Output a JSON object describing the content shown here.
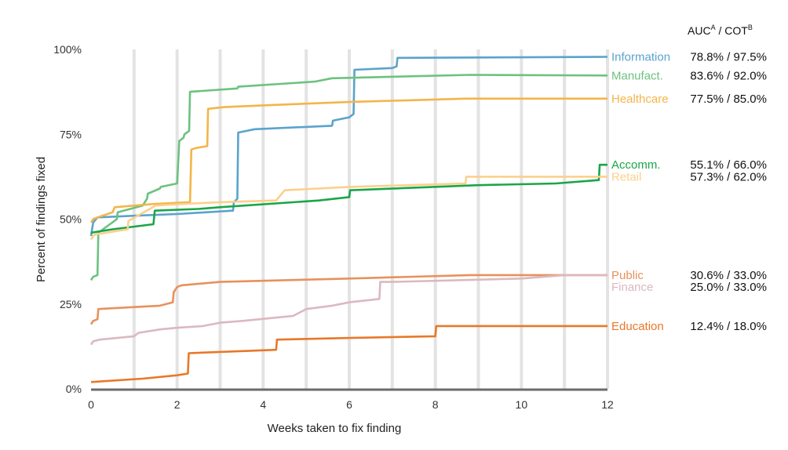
{
  "chart_data": {
    "type": "line",
    "title": "",
    "xlabel": "Weeks taken to fix finding",
    "ylabel": "Percent of findings fixed",
    "xlim": [
      0,
      12
    ],
    "ylim": [
      0,
      100
    ],
    "x_ticks": [
      0,
      2,
      4,
      6,
      8,
      10,
      12
    ],
    "y_ticks": [
      0,
      25,
      50,
      75,
      100
    ],
    "y_tick_labels": [
      "0%",
      "25%",
      "50%",
      "75%",
      "100%"
    ],
    "metrics_header": {
      "auc": "AUC",
      "auc_sup": "A",
      "sep": " / ",
      "cot": "COT",
      "cot_sup": "B"
    },
    "grid": {
      "vertical_every_weeks": 1,
      "horizontal": false
    },
    "legend": "right-of-plot",
    "series": [
      {
        "name": "Information",
        "color": "#5aa3cc",
        "metrics": "78.8% / 97.5%",
        "points": [
          [
            0,
            45
          ],
          [
            0.05,
            49
          ],
          [
            0.15,
            50.5
          ],
          [
            1,
            51
          ],
          [
            2,
            51.5
          ],
          [
            3.3,
            52.5
          ],
          [
            3.32,
            55
          ],
          [
            3.4,
            56
          ],
          [
            3.42,
            75.5
          ],
          [
            3.8,
            76.5
          ],
          [
            5.6,
            77.5
          ],
          [
            5.62,
            79
          ],
          [
            6,
            80
          ],
          [
            6.1,
            81
          ],
          [
            6.12,
            94
          ],
          [
            7,
            94.5
          ],
          [
            7.1,
            95
          ],
          [
            7.12,
            97.5
          ],
          [
            12,
            97.8
          ]
        ]
      },
      {
        "name": "Manufact.",
        "color": "#6cc27f",
        "metrics": "83.6% / 92.0%",
        "points": [
          [
            0,
            32
          ],
          [
            0.05,
            33
          ],
          [
            0.15,
            33.5
          ],
          [
            0.17,
            46
          ],
          [
            0.6,
            50
          ],
          [
            0.62,
            52
          ],
          [
            1.2,
            54
          ],
          [
            1.3,
            56
          ],
          [
            1.32,
            57.5
          ],
          [
            1.6,
            59
          ],
          [
            1.62,
            59.5
          ],
          [
            2,
            60.5
          ],
          [
            2.05,
            73
          ],
          [
            2.15,
            74
          ],
          [
            2.17,
            75
          ],
          [
            2.28,
            76
          ],
          [
            2.3,
            87.5
          ],
          [
            3.4,
            88.5
          ],
          [
            3.42,
            89
          ],
          [
            5.2,
            90.5
          ],
          [
            5.6,
            91.5
          ],
          [
            8.8,
            92.5
          ],
          [
            12,
            92.3
          ]
        ]
      },
      {
        "name": "Healthcare",
        "color": "#f3b549",
        "metrics": "77.5% / 85.0%",
        "points": [
          [
            0,
            49
          ],
          [
            0.05,
            50
          ],
          [
            0.15,
            50.5
          ],
          [
            0.5,
            52
          ],
          [
            0.55,
            53.5
          ],
          [
            1.5,
            54.5
          ],
          [
            2.3,
            55
          ],
          [
            2.33,
            70.5
          ],
          [
            2.45,
            71
          ],
          [
            2.7,
            71.5
          ],
          [
            2.72,
            82.5
          ],
          [
            3.1,
            83
          ],
          [
            4,
            83.5
          ],
          [
            6,
            84.5
          ],
          [
            8.7,
            85.5
          ],
          [
            12,
            85.5
          ]
        ]
      },
      {
        "name": "Accomm.",
        "color": "#1ba548",
        "metrics": "55.1% / 66.0%",
        "points": [
          [
            0,
            46
          ],
          [
            0.5,
            47
          ],
          [
            1.45,
            48.5
          ],
          [
            1.48,
            52.5
          ],
          [
            2.5,
            53
          ],
          [
            3,
            53.5
          ],
          [
            5.3,
            55.5
          ],
          [
            6,
            56.5
          ],
          [
            6.02,
            58.5
          ],
          [
            9,
            60
          ],
          [
            10.8,
            60.5
          ],
          [
            11.8,
            61.5
          ],
          [
            11.82,
            66
          ],
          [
            12,
            66
          ]
        ]
      },
      {
        "name": "Retail",
        "color": "#fbd08c",
        "metrics": "57.3% / 62.0%",
        "points": [
          [
            0,
            44
          ],
          [
            0.05,
            45
          ],
          [
            0.1,
            45.5
          ],
          [
            0.85,
            47
          ],
          [
            0.87,
            49.5
          ],
          [
            1.5,
            54
          ],
          [
            2.2,
            54.5
          ],
          [
            3,
            55
          ],
          [
            4.3,
            55.5
          ],
          [
            4.4,
            57
          ],
          [
            4.5,
            58.5
          ],
          [
            6,
            59.5
          ],
          [
            8.7,
            60.5
          ],
          [
            8.72,
            62.5
          ],
          [
            12,
            62.5
          ]
        ]
      },
      {
        "name": "Public",
        "color": "#e8915b",
        "metrics": "30.6% / 33.0%",
        "points": [
          [
            0,
            19
          ],
          [
            0.05,
            20
          ],
          [
            0.15,
            20.5
          ],
          [
            0.17,
            23.5
          ],
          [
            1.6,
            24.5
          ],
          [
            1.9,
            25.5
          ],
          [
            1.92,
            28.5
          ],
          [
            2,
            30
          ],
          [
            2.1,
            30.5
          ],
          [
            3,
            31.5
          ],
          [
            6,
            32.5
          ],
          [
            8.8,
            33.5
          ],
          [
            12,
            33.5
          ]
        ]
      },
      {
        "name": "Finance",
        "color": "#dcb8c0",
        "metrics": "25.0% / 33.0%",
        "points": [
          [
            0,
            13
          ],
          [
            0.05,
            14
          ],
          [
            0.2,
            14.5
          ],
          [
            1,
            15.5
          ],
          [
            1.1,
            16.5
          ],
          [
            1.6,
            17.5
          ],
          [
            2,
            18
          ],
          [
            2.6,
            18.5
          ],
          [
            3,
            19.5
          ],
          [
            3.5,
            20
          ],
          [
            4.7,
            21.5
          ],
          [
            5,
            23.5
          ],
          [
            5.6,
            24.5
          ],
          [
            5.8,
            25
          ],
          [
            6,
            25.5
          ],
          [
            6.7,
            26.5
          ],
          [
            6.72,
            31.5
          ],
          [
            7,
            31.5
          ],
          [
            10,
            32.5
          ],
          [
            11,
            33.5
          ],
          [
            12,
            33.5
          ]
        ]
      },
      {
        "name": "Education",
        "color": "#e8782a",
        "metrics": "12.4% / 18.0%",
        "points": [
          [
            0,
            2
          ],
          [
            1.2,
            3
          ],
          [
            2,
            4
          ],
          [
            2.25,
            4.5
          ],
          [
            2.27,
            10.5
          ],
          [
            4.3,
            11.5
          ],
          [
            4.32,
            14.5
          ],
          [
            6,
            15
          ],
          [
            8,
            15.5
          ],
          [
            8.02,
            18.5
          ],
          [
            12,
            18.5
          ]
        ]
      }
    ]
  }
}
